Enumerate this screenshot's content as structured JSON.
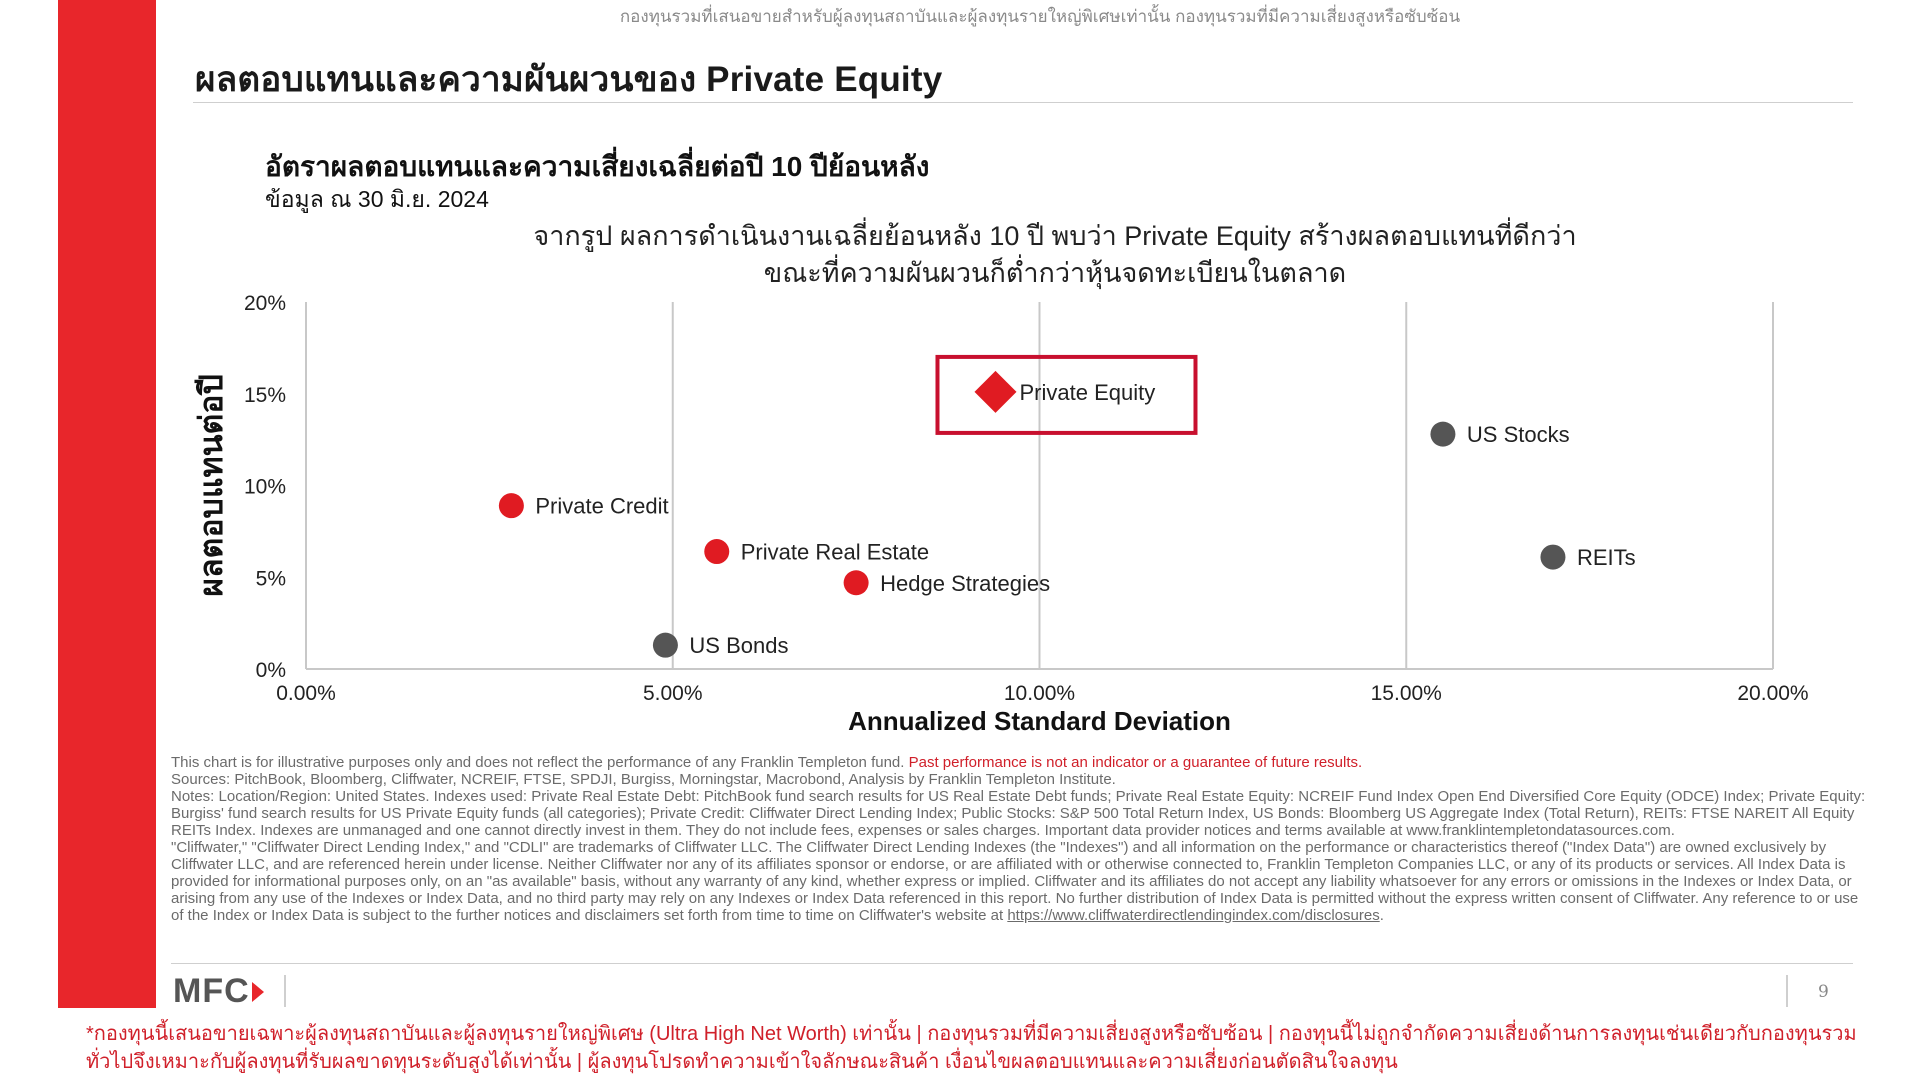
{
  "top_disclaimer": "กองทุนรวมที่เสนอขายสำหรับผู้ลงทุนสถาบันและผู้ลงทุนรายใหญ่พิเศษเท่านั้น กองทุนรวมที่มีความเสี่ยงสูงหรือซับซ้อน",
  "slide_title": "ผลตอบแทนและความผันผวนของ Private Equity",
  "chart_title": "อัตราผลตอบแทนและความเสี่ยงเฉลี่ยต่อปี 10 ปีย้อนหลัง",
  "chart_subtitle": "ข้อมูล ณ 30 มิ.ย. 2024",
  "chart_caption_line1": "จากรูป ผลการดำเนินงานเฉลี่ยย้อนหลัง 10 ปี พบว่า Private Equity สร้างผลตอบแทนที่ดีกว่า",
  "chart_caption_line2": "ขณะที่ความผันผวนก็ต่ำกว่าหุ้นจดทะเบียนในตลาด",
  "colors": {
    "accent_red": "#e8262b",
    "series_red": "#e01b22",
    "series_grey": "#555555",
    "highlight_box": "#c8102e"
  },
  "chart_data": {
    "type": "scatter",
    "xlabel": "Annualized Standard Deviation",
    "ylabel": "ผลตอบแทนต่อปี",
    "xlim": [
      0,
      20
    ],
    "ylim": [
      0,
      20
    ],
    "x_ticks": [
      "0.00%",
      "5.00%",
      "10.00%",
      "15.00%",
      "20.00%"
    ],
    "y_ticks": [
      "0%",
      "5%",
      "10%",
      "15%",
      "20%"
    ],
    "grid": "vertical",
    "points": [
      {
        "label": "Private Equity",
        "x": 9.4,
        "y": 15.1,
        "marker": "diamond",
        "color": "#e01b22",
        "highlight": true
      },
      {
        "label": "US Stocks",
        "x": 15.5,
        "y": 12.8,
        "marker": "circle",
        "color": "#555555"
      },
      {
        "label": "Private Credit",
        "x": 2.8,
        "y": 8.9,
        "marker": "circle",
        "color": "#e01b22"
      },
      {
        "label": "Private Real Estate",
        "x": 5.6,
        "y": 6.4,
        "marker": "circle",
        "color": "#e01b22"
      },
      {
        "label": "Hedge Strategies",
        "x": 7.5,
        "y": 4.7,
        "marker": "circle",
        "color": "#e01b22"
      },
      {
        "label": "REITs",
        "x": 17.0,
        "y": 6.1,
        "marker": "circle",
        "color": "#555555"
      },
      {
        "label": "US Bonds",
        "x": 4.9,
        "y": 1.3,
        "marker": "circle",
        "color": "#555555"
      }
    ]
  },
  "footnotes": {
    "line1_a": "This chart is for illustrative purposes only and does not reflect the performance of any Franklin Templeton fund.",
    "line1_warn": "Past performance is not an indicator or a guarantee of future results.",
    "sources": "Sources: PitchBook, Bloomberg, Cliffwater, NCREIF, FTSE, SPDJI, Burgiss, Morningstar, Macrobond, Analysis by Franklin Templeton Institute.",
    "notes": "Notes: Location/Region: United States. Indexes used: Private Real Estate Debt: PitchBook fund search results for US Real Estate Debt funds; Private Real Estate Equity: NCREIF Fund Index Open End Diversified Core Equity (ODCE) Index; Private Equity: Burgiss' fund search results for US Private Equity funds (all categories); Private Credit: Cliffwater Direct Lending Index; Public Stocks: S&P 500 Total Return Index, US Bonds: Bloomberg US Aggregate Index (Total Return), REITs: FTSE NAREIT All Equity REITs Index. Indexes are unmanaged and one cannot directly invest in them. They do not include fees, expenses or sales charges. Important data provider notices and terms available at www.franklintempletondatasources.com.",
    "cliffwater": "\"Cliffwater,\" \"Cliffwater Direct Lending Index,\" and \"CDLI\" are trademarks of Cliffwater LLC. The Cliffwater Direct Lending Indexes (the \"Indexes\") and all information on the performance or characteristics thereof (\"Index Data\") are owned exclusively by Cliffwater LLC, and are referenced herein under license. Neither Cliffwater nor any of its affiliates sponsor or endorse, or are affiliated with or otherwise connected to, Franklin Templeton Companies LLC, or any of its products or services. All Index Data is provided for informational purposes only, on an \"as available\" basis, without any warranty of any kind, whether express or implied. Cliffwater and its affiliates do not accept any liability whatsoever for any errors or omissions in the Indexes or Index Data, or arising from any use of the Indexes or Index Data, and no third party may rely on any Indexes or Index Data referenced in this report. No further distribution of Index Data is permitted without the express written consent of Cliffwater. Any reference to or use of the Index or Index Data is subject to the further notices and disclaimers set forth from time to time on Cliffwater's website at",
    "cliffwater_link": "https://www.cliffwaterdirectlendingindex.com/disclosures",
    "cliffwater_end": "."
  },
  "logo_text": "MFC",
  "page_number": "9",
  "bottom_warning": "*กองทุนนี้เสนอขายเฉพาะผู้ลงทุนสถาบันและผู้ลงทุนรายใหญ่พิเศษ (Ultra High Net Worth) เท่านั้น | กองทุนรวมที่มีความเสี่ยงสูงหรือซับซ้อน | กองทุนนี้ไม่ถูกจำกัดความเสี่ยงด้านการลงทุนเช่นเดียวกับกองทุนรวมทั่วไปจึงเหมาะกับผู้ลงทุนที่รับผลขาดทุนระดับสูงได้เท่านั้น | ผู้ลงทุนโปรดทำความเข้าใจลักษณะสินค้า เงื่อนไขผลตอบแทนและความเสี่ยงก่อนตัดสินใจลงทุน"
}
